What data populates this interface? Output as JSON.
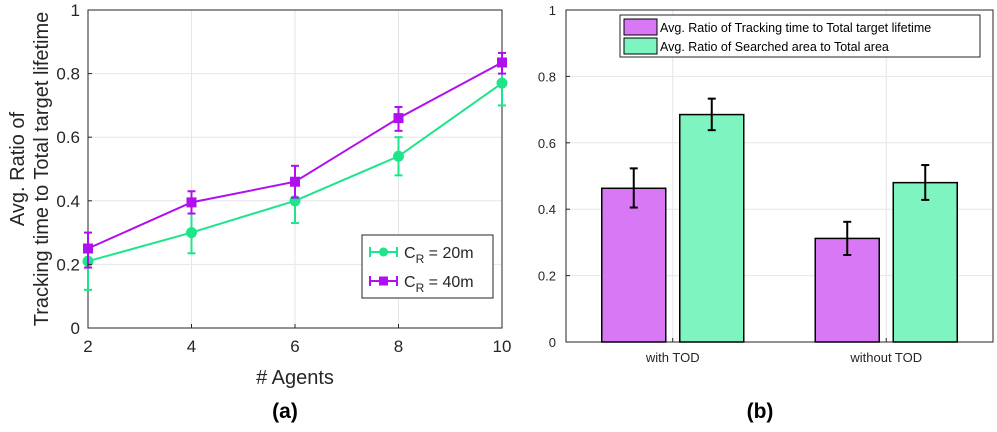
{
  "chart_data": [
    {
      "type": "line",
      "caption": "(a)",
      "xlabel": "# Agents",
      "ylabel_lines": [
        "Avg. Ratio of",
        "Tracking time to Total target lifetime"
      ],
      "x": [
        2,
        4,
        6,
        8,
        10
      ],
      "xlim": [
        2,
        10
      ],
      "ylim": [
        0,
        1
      ],
      "xticks": [
        "2",
        "4",
        "6",
        "8",
        "10"
      ],
      "yticks": [
        "0",
        "0.2",
        "0.4",
        "0.6",
        "0.8",
        "1"
      ],
      "grid": true,
      "legend_position": "bottom-right",
      "series": [
        {
          "label_main": "C",
          "label_sub": "R",
          "label_rest": " = 20m",
          "color": "#1ee58a",
          "marker": "circle",
          "values": [
            0.21,
            0.3,
            0.4,
            0.54,
            0.77
          ],
          "err_low": [
            0.12,
            0.235,
            0.33,
            0.48,
            0.7
          ],
          "err_high": [
            0.26,
            0.36,
            0.46,
            0.6,
            0.83
          ]
        },
        {
          "label_main": "C",
          "label_sub": "R",
          "label_rest": " = 40m",
          "color": "#b010f0",
          "marker": "square",
          "values": [
            0.25,
            0.395,
            0.46,
            0.66,
            0.835
          ],
          "err_low": [
            0.19,
            0.36,
            0.41,
            0.62,
            0.8
          ],
          "err_high": [
            0.3,
            0.43,
            0.51,
            0.695,
            0.865
          ]
        }
      ]
    },
    {
      "type": "bar",
      "caption": "(b)",
      "categories": [
        "with TOD",
        "without TOD"
      ],
      "ylim": [
        0,
        1
      ],
      "yticks": [
        "0",
        "0.2",
        "0.4",
        "0.6",
        "0.8",
        "1"
      ],
      "grid": true,
      "legend_position": "top-right",
      "series": [
        {
          "name": "Avg. Ratio of Tracking time to Total target lifetime",
          "color": "#d878f5",
          "values": [
            0.463,
            0.312
          ],
          "err_low": [
            0.405,
            0.262
          ],
          "err_high": [
            0.523,
            0.362
          ]
        },
        {
          "name": "Avg. Ratio of Searched area to Total area",
          "color": "#7ef5c0",
          "values": [
            0.685,
            0.48
          ],
          "err_low": [
            0.638,
            0.428
          ],
          "err_high": [
            0.733,
            0.533
          ]
        }
      ]
    }
  ]
}
